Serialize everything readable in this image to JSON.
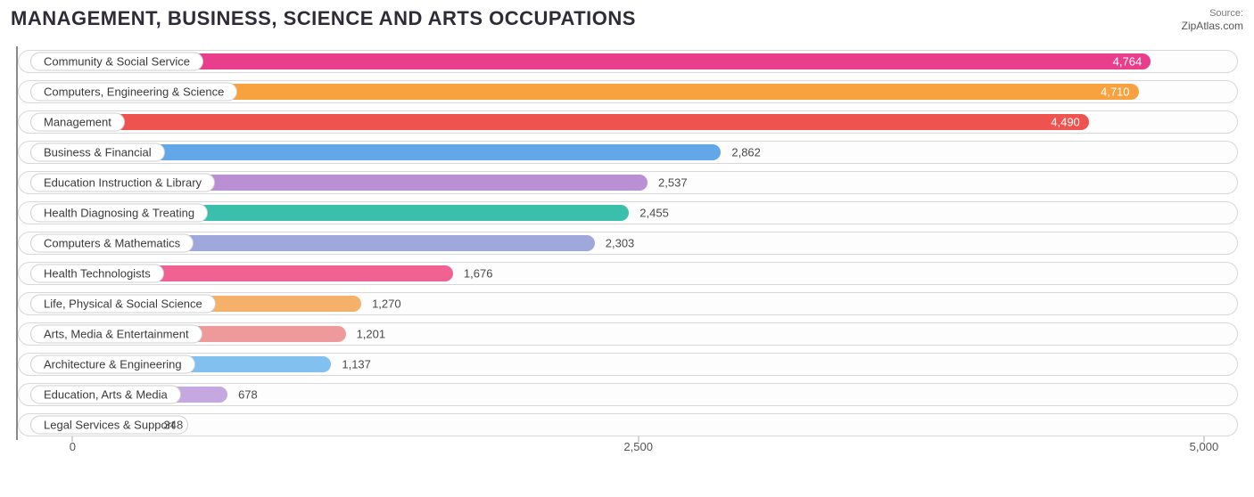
{
  "title": "MANAGEMENT, BUSINESS, SCIENCE AND ARTS OCCUPATIONS",
  "source_label": "Source:",
  "source_site": "ZipAtlas.com",
  "chart": {
    "type": "bar-horizontal",
    "x_min": -250,
    "x_max": 5150,
    "ticks": [
      {
        "value": 0,
        "label": "0"
      },
      {
        "value": 2500,
        "label": "2,500"
      },
      {
        "value": 5000,
        "label": "5,000"
      }
    ],
    "track_border": "#d8d8d8",
    "axis_color": "#8a8a8a",
    "bars": [
      {
        "label": "Community & Social Service",
        "value": 4764,
        "display": "4,764",
        "color": "#e83e8c",
        "value_inside": true,
        "value_color": "#ffffff"
      },
      {
        "label": "Computers, Engineering & Science",
        "value": 4710,
        "display": "4,710",
        "color": "#f8a13f",
        "value_inside": true,
        "value_color": "#ffffff"
      },
      {
        "label": "Management",
        "value": 4490,
        "display": "4,490",
        "color": "#ef5350",
        "value_inside": true,
        "value_color": "#ffffff"
      },
      {
        "label": "Business & Financial",
        "value": 2862,
        "display": "2,862",
        "color": "#64a7e8",
        "value_inside": false,
        "value_color": "#4a4a4a"
      },
      {
        "label": "Education Instruction & Library",
        "value": 2537,
        "display": "2,537",
        "color": "#ba8fd4",
        "value_inside": false,
        "value_color": "#4a4a4a"
      },
      {
        "label": "Health Diagnosing & Treating",
        "value": 2455,
        "display": "2,455",
        "color": "#3bbfad",
        "value_inside": false,
        "value_color": "#4a4a4a"
      },
      {
        "label": "Computers & Mathematics",
        "value": 2303,
        "display": "2,303",
        "color": "#9fa8da",
        "value_inside": false,
        "value_color": "#4a4a4a"
      },
      {
        "label": "Health Technologists",
        "value": 1676,
        "display": "1,676",
        "color": "#f06292",
        "value_inside": false,
        "value_color": "#4a4a4a"
      },
      {
        "label": "Life, Physical & Social Science",
        "value": 1270,
        "display": "1,270",
        "color": "#f5b06a",
        "value_inside": false,
        "value_color": "#4a4a4a"
      },
      {
        "label": "Arts, Media & Entertainment",
        "value": 1201,
        "display": "1,201",
        "color": "#ef9a9a",
        "value_inside": false,
        "value_color": "#4a4a4a"
      },
      {
        "label": "Architecture & Engineering",
        "value": 1137,
        "display": "1,137",
        "color": "#81c0ef",
        "value_inside": false,
        "value_color": "#4a4a4a"
      },
      {
        "label": "Education, Arts & Media",
        "value": 678,
        "display": "678",
        "color": "#c5a8e0",
        "value_inside": false,
        "value_color": "#4a4a4a"
      },
      {
        "label": "Legal Services & Support",
        "value": 348,
        "display": "348",
        "color": "#80cbc4",
        "value_inside": false,
        "value_color": "#4a4a4a"
      }
    ]
  }
}
